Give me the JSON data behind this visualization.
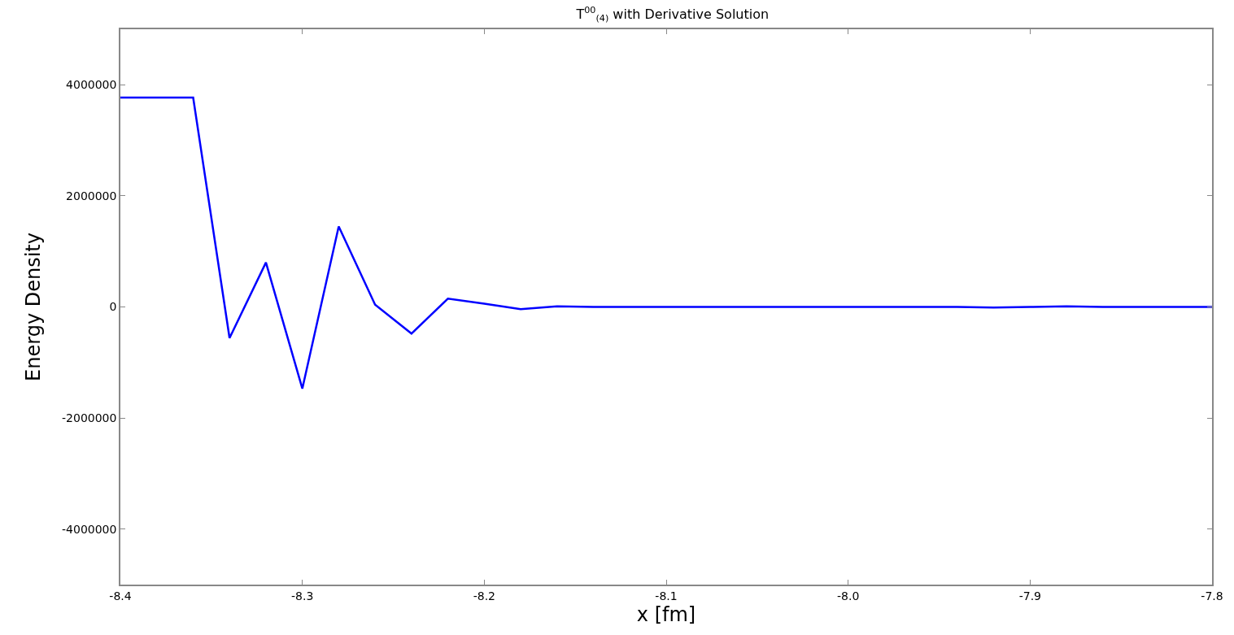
{
  "chart_data": {
    "type": "line",
    "title": "T$^{00}$$_{(4)}$ with Derivative Solution",
    "xlabel": "x [fm]",
    "ylabel": "Energy Density",
    "x": [
      -8.4,
      -8.38,
      -8.36,
      -8.34,
      -8.32,
      -8.3,
      -8.28,
      -8.26,
      -8.24,
      -8.22,
      -8.2,
      -8.18,
      -8.16,
      -8.14,
      -8.12,
      -8.1,
      -8.08,
      -8.06,
      -8.04,
      -8.02,
      -8.0,
      -7.98,
      -7.96,
      -7.94,
      -7.92,
      -7.9,
      -7.88,
      -7.86,
      -7.84,
      -7.82,
      -7.8
    ],
    "series": [
      {
        "color": "#0000ff",
        "values": [
          3770000,
          3770000,
          3770000,
          -560000,
          800000,
          -1470000,
          1450000,
          40000,
          -480000,
          150000,
          60000,
          -40000,
          10000,
          0,
          0,
          0,
          0,
          0,
          0,
          0,
          0,
          0,
          0,
          0,
          -10000,
          0,
          10000,
          0,
          0,
          0,
          0
        ]
      }
    ],
    "xlim": [
      -8.4,
      -7.8
    ],
    "xticks": [
      -8.4,
      -8.3,
      -8.2,
      -8.1,
      {
        "value": -8,
        "label": "-8.0"
      },
      -7.9,
      -7.8
    ],
    "ylim": [
      -5000000,
      5000000
    ],
    "yticks": [
      -4000000,
      -2000000,
      0,
      2000000,
      4000000
    ],
    "grid": false,
    "marker": "none",
    "line_style": "solid"
  }
}
